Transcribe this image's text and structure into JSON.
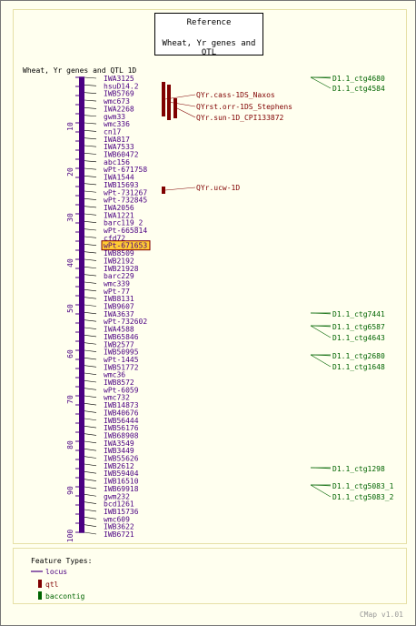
{
  "reference": {
    "title": "Reference",
    "subtitle": "Wheat, Yr genes and QTL"
  },
  "map_title": "Wheat, Yr genes and QTL 1D",
  "axis_ticks": [
    "10",
    "20",
    "30",
    "40",
    "50",
    "60",
    "70",
    "80",
    "90",
    "100"
  ],
  "loci": [
    "IWA3125",
    "hsuD14.2",
    "IWB5769",
    "wmc673",
    "IWA2268",
    "gwm33",
    "wmc336",
    "cn17",
    "IWA817",
    "IWA7533",
    "IWB60472",
    "abc156",
    "wPt-671758",
    "IWA1544",
    "IWB15693",
    "wPt-731267",
    "wPt-732845",
    "IWA2056",
    "IWA1221",
    "barc119_2",
    "wPt-665814",
    "cfd72",
    "wPt-671653",
    "IWB8509",
    "IWB2192",
    "IWB21928",
    "barc229",
    "wmc339",
    "wPt-77",
    "IWB8131",
    "IWB9607",
    "IWA3637",
    "wPt-732602",
    "IWA4588",
    "IWB65846",
    "IWB2577",
    "IWB50995",
    "wPt-1445",
    "IWB51772",
    "wmc36",
    "IWB8572",
    "wPt-6059",
    "wmc732",
    "IWB14873",
    "IWB40676",
    "IWB56444",
    "IWB56176",
    "IWB68908",
    "IWA3549",
    "IWB3449",
    "IWB55626",
    "IWB2612",
    "IWB59404",
    "IWB16510",
    "IWB69918",
    "gwm232",
    "bcd1261",
    "IWB15736",
    "wmc609",
    "IWB3622",
    "IWB6721"
  ],
  "highlighted_locus": "wPt-671653",
  "qtls": [
    "QYr.cass-1DS_Naxos",
    "QYrst.orr-1DS_Stephens",
    "QYr.sun-1D_CPI133872",
    "QYr.ucw-1D"
  ],
  "contigs": [
    "D1.1_ctg4680",
    "D1.1_ctg4584",
    "D1.1_ctg7441",
    "D1.1_ctg6587",
    "D1.1_ctg4643",
    "D1.1_ctg2680",
    "D1.1_ctg1648",
    "D1.1_ctg1298",
    "D1.1_ctg5083_1",
    "D1.1_ctg5083_2"
  ],
  "legend": {
    "title": "Feature Types:",
    "items": [
      "locus",
      "qtl",
      "baccontig"
    ]
  },
  "footer": "CMap v1.01",
  "colors": {
    "background": "#ffffef",
    "map": "#4b0082",
    "qtl": "#800000",
    "contig": "#006400",
    "highlight": "#ffcc33",
    "frame": "#e6e0a6"
  }
}
